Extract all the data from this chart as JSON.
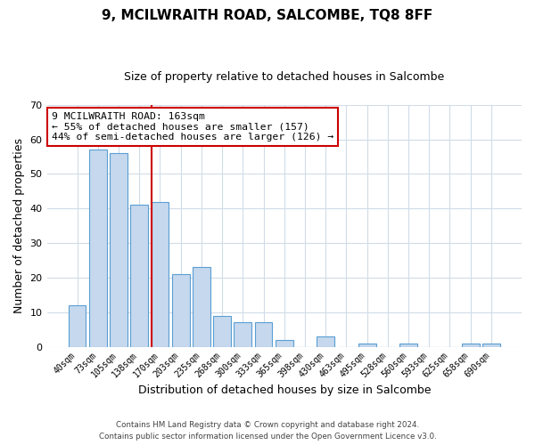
{
  "title": "9, MCILWRAITH ROAD, SALCOMBE, TQ8 8FF",
  "subtitle": "Size of property relative to detached houses in Salcombe",
  "xlabel": "Distribution of detached houses by size in Salcombe",
  "ylabel": "Number of detached properties",
  "bar_labels": [
    "40sqm",
    "73sqm",
    "105sqm",
    "138sqm",
    "170sqm",
    "203sqm",
    "235sqm",
    "268sqm",
    "300sqm",
    "333sqm",
    "365sqm",
    "398sqm",
    "430sqm",
    "463sqm",
    "495sqm",
    "528sqm",
    "560sqm",
    "593sqm",
    "625sqm",
    "658sqm",
    "690sqm"
  ],
  "bar_values": [
    12,
    57,
    56,
    41,
    42,
    21,
    23,
    9,
    7,
    7,
    2,
    0,
    3,
    0,
    1,
    0,
    1,
    0,
    0,
    1,
    1
  ],
  "bar_color": "#c5d8ed",
  "bar_edge_color": "#5a9fd4",
  "ylim": [
    0,
    70
  ],
  "yticks": [
    0,
    10,
    20,
    30,
    40,
    50,
    60,
    70
  ],
  "vline_color": "#cc0000",
  "annotation_title": "9 MCILWRAITH ROAD: 163sqm",
  "annotation_line1": "← 55% of detached houses are smaller (157)",
  "annotation_line2": "44% of semi-detached houses are larger (126) →",
  "annotation_box_color": "#ffffff",
  "annotation_box_edge": "#cc0000",
  "footer_line1": "Contains HM Land Registry data © Crown copyright and database right 2024.",
  "footer_line2": "Contains public sector information licensed under the Open Government Licence v3.0.",
  "background_color": "#ffffff",
  "grid_color": "#d0dce8"
}
